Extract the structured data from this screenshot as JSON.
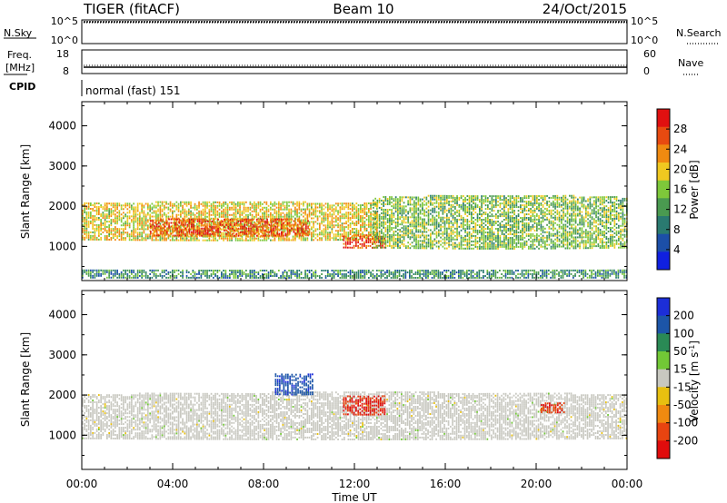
{
  "header": {
    "station": "TIGER (fitACF)",
    "beam": "Beam 10",
    "date": "24/Oct/2015"
  },
  "strip_panels": {
    "nsky_label": "N.Sky",
    "nsearch_label": "N.Search",
    "freq_label_line1": "Freq.",
    "freq_label_line2": "[MHz]",
    "nave_label": "Nave",
    "cpid_label": "CPID",
    "cpid_value": "normal (fast) 151",
    "noise_ticks_left": [
      "10^5",
      "10^0"
    ],
    "noise_ticks_right": [
      "10^5",
      "10^0"
    ],
    "freq_ticks": [
      "18",
      "8"
    ],
    "nave_ticks": [
      "60",
      "0"
    ]
  },
  "colors": {
    "power_scale": [
      "#1020e0",
      "#1c4fa8",
      "#2a7a70",
      "#4a9a50",
      "#7ec83a",
      "#f0c820",
      "#f08a10",
      "#e84a10",
      "#e01010"
    ],
    "velocity_scale": [
      "#1c2ed8",
      "#1c55a8",
      "#2a8a55",
      "#72c836",
      "#c8c8c0",
      "#e8c010",
      "#f08a10",
      "#e84410",
      "#e00c0c"
    ]
  },
  "chart_data": [
    {
      "type": "heatmap",
      "panel": "power",
      "title": "",
      "xlabel": "Time UT",
      "ylabel": "Slant Range [km]",
      "x_range_hours": [
        0,
        24
      ],
      "ylim": [
        150,
        4600
      ],
      "y_ticks": [
        "4000",
        "3000",
        "2000",
        "1000"
      ],
      "x_tick_labels": [
        "00:00",
        "04:00",
        "08:00",
        "12:00",
        "16:00",
        "20:00",
        "00:00"
      ],
      "colorbar": {
        "label": "Power [dB]",
        "ticks": [
          "28",
          "24",
          "20",
          "16",
          "12",
          "8",
          "4"
        ],
        "range": [
          0,
          30
        ]
      },
      "bands": [
        {
          "region": "main arc",
          "t_start": 0.0,
          "t_end": 13.0,
          "range_top_km": 2050,
          "range_bottom_km": 1150,
          "typical_value": 18
        },
        {
          "region": "morning enhancement",
          "t_start": 3.0,
          "t_end": 10.0,
          "range_top_km": 1650,
          "range_bottom_km": 1250,
          "typical_value": 25
        },
        {
          "region": "noon patch",
          "t_start": 11.5,
          "t_end": 13.3,
          "range_top_km": 1250,
          "range_bottom_km": 950,
          "typical_value": 26
        },
        {
          "region": "afternoon arc",
          "t_start": 12.8,
          "t_end": 24.0,
          "range_top_km": 2200,
          "range_bottom_km": 950,
          "typical_value": 14
        },
        {
          "region": "near range clutter",
          "t_start": 0.0,
          "t_end": 24.0,
          "range_top_km": 400,
          "range_bottom_km": 200,
          "typical_value": 10
        }
      ]
    },
    {
      "type": "heatmap",
      "panel": "velocity",
      "title": "",
      "xlabel": "Time UT",
      "ylabel": "Slant Range [km]",
      "x_range_hours": [
        0,
        24
      ],
      "ylim": [
        150,
        4600
      ],
      "y_ticks": [
        "4000",
        "3000",
        "2000",
        "1000"
      ],
      "x_tick_labels": [
        "00:00",
        "04:00",
        "08:00",
        "12:00",
        "16:00",
        "20:00",
        "00:00"
      ],
      "colorbar": {
        "label": "Velocity [m s^-1]",
        "ticks": [
          "200",
          "100",
          "50",
          "15",
          "-15",
          "-50",
          "-100",
          "-200"
        ],
        "range": [
          -250,
          250
        ]
      },
      "bands": [
        {
          "region": "ground scatter",
          "t_start": 0.0,
          "t_end": 24.0,
          "range_top_km": 2000,
          "range_bottom_km": 900,
          "typical_value": 0
        },
        {
          "region": "positive patch",
          "t_start": 8.5,
          "t_end": 10.2,
          "range_top_km": 2500,
          "range_bottom_km": 2000,
          "typical_value": 180
        },
        {
          "region": "negative patch noon",
          "t_start": 11.5,
          "t_end": 13.3,
          "range_top_km": 1950,
          "range_bottom_km": 1500,
          "typical_value": -200
        },
        {
          "region": "negative patch evening",
          "t_start": 20.2,
          "t_end": 21.2,
          "range_top_km": 1800,
          "range_bottom_km": 1550,
          "typical_value": -180
        }
      ]
    }
  ]
}
